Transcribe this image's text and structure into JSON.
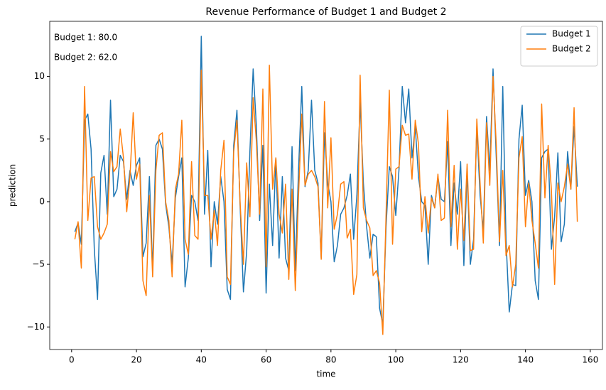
{
  "chart_data": {
    "type": "line",
    "title": "Revenue Performance of Budget 1 and Budget 2",
    "xlabel": "time",
    "ylabel": "prediction",
    "annotations": [
      "Budget 1: 80.0",
      "Budget 2: 62.0"
    ],
    "legend": "upper right",
    "xlim": [
      -6.75,
      163.75
    ],
    "ylim": [
      -11.8,
      14.4
    ],
    "xticks": [
      0,
      20,
      40,
      60,
      80,
      100,
      120,
      140,
      160
    ],
    "yticks": [
      {
        "value": -10,
        "label": "−10"
      },
      {
        "value": -5,
        "label": "−5"
      },
      0,
      5,
      10
    ],
    "x": [
      1,
      2,
      3,
      4,
      5,
      6,
      7,
      8,
      9,
      10,
      11,
      12,
      13,
      14,
      15,
      16,
      17,
      18,
      19,
      20,
      21,
      22,
      23,
      24,
      25,
      26,
      27,
      28,
      29,
      30,
      31,
      32,
      33,
      34,
      35,
      36,
      37,
      38,
      39,
      40,
      41,
      42,
      43,
      44,
      45,
      46,
      47,
      48,
      49,
      50,
      51,
      52,
      53,
      54,
      55,
      56,
      57,
      58,
      59,
      60,
      61,
      62,
      63,
      64,
      65,
      66,
      67,
      68,
      69,
      70,
      71,
      72,
      73,
      74,
      75,
      76,
      77,
      78,
      79,
      80,
      81,
      82,
      83,
      84,
      85,
      86,
      87,
      88,
      89,
      90,
      91,
      92,
      93,
      94,
      95,
      96,
      97,
      98,
      99,
      100,
      101,
      102,
      103,
      104,
      105,
      106,
      107,
      108,
      109,
      110,
      111,
      112,
      113,
      114,
      115,
      116,
      117,
      118,
      119,
      120,
      121,
      122,
      123,
      124,
      125,
      126,
      127,
      128,
      129,
      130,
      131,
      132,
      133,
      134,
      135,
      136,
      137,
      138,
      139,
      140,
      141,
      142,
      143,
      144,
      145,
      146,
      147,
      148,
      149,
      150,
      151,
      152,
      153,
      154,
      155,
      156
    ],
    "series": [
      {
        "name": "Budget 1",
        "color": "#1f77b4",
        "values": [
          -2.4,
          -1.7,
          -3.4,
          6.5,
          7.0,
          4.2,
          -3.8,
          -7.8,
          2.3,
          3.7,
          -1.0,
          8.1,
          0.4,
          1.0,
          3.7,
          3.2,
          0.2,
          2.5,
          1.3,
          2.9,
          3.5,
          -4.4,
          -3.3,
          2.0,
          -5.5,
          4.5,
          5.0,
          4.2,
          -0.2,
          -2.0,
          -5.0,
          0.3,
          2.0,
          3.5,
          -6.8,
          -4.5,
          0.5,
          0.0,
          -1.5,
          13.2,
          -1.0,
          4.1,
          -5.2,
          0.0,
          -1.8,
          2.0,
          0.0,
          -7.0,
          -7.8,
          4.5,
          7.3,
          -0.5,
          -7.2,
          -4.0,
          4.0,
          10.6,
          6.0,
          -1.5,
          4.5,
          -7.3,
          1.4,
          -3.5,
          3.5,
          -4.5,
          2.0,
          -4.5,
          -5.5,
          4.4,
          -5.5,
          2.5,
          9.2,
          1.2,
          2.5,
          8.1,
          2.5,
          1.5,
          -4.5,
          5.5,
          1.5,
          0.0,
          -4.8,
          -3.5,
          -1.0,
          -0.5,
          0.5,
          2.2,
          -3.0,
          0.5,
          8.0,
          1.5,
          -2.0,
          -4.5,
          -2.6,
          -2.8,
          -8.5,
          -9.8,
          -2.0,
          2.8,
          2.0,
          -1.1,
          2.6,
          9.2,
          6.3,
          9.0,
          3.5,
          6.0,
          2.0,
          0.0,
          -0.3,
          -5.0,
          0.5,
          -0.5,
          2.0,
          0.2,
          0.0,
          4.8,
          -3.5,
          1.5,
          -1.0,
          3.2,
          -5.1,
          2.5,
          -5.0,
          -3.0,
          6.0,
          0.5,
          -2.3,
          6.8,
          2.5,
          10.6,
          3.5,
          -3.5,
          9.2,
          -3.0,
          -8.8,
          -6.6,
          -6.7,
          5.0,
          7.7,
          0.5,
          1.7,
          0.0,
          -6.3,
          -7.8,
          3.5,
          4.0,
          4.2,
          -3.8,
          -1.2,
          3.9,
          -3.2,
          -1.8,
          4.0,
          1.0,
          6.0,
          1.2
        ]
      },
      {
        "name": "Budget 2",
        "color": "#ff7f0e",
        "values": [
          -3.0,
          -1.6,
          -5.3,
          9.2,
          -1.5,
          1.9,
          2.0,
          -2.0,
          -3.0,
          -2.5,
          -1.8,
          4.0,
          2.4,
          2.8,
          5.8,
          3.5,
          -0.8,
          2.0,
          7.1,
          1.8,
          3.0,
          -6.3,
          -7.5,
          0.5,
          -6.0,
          2.5,
          5.3,
          5.5,
          0.0,
          -1.5,
          -6.0,
          1.0,
          2.2,
          6.5,
          -3.0,
          -4.2,
          3.2,
          -2.7,
          -3.0,
          10.5,
          0.5,
          0.5,
          -3.0,
          -0.7,
          -3.5,
          2.5,
          4.9,
          -6.0,
          -6.6,
          4.0,
          6.5,
          -0.2,
          -5.0,
          3.1,
          -1.2,
          8.3,
          4.8,
          -1.0,
          9.0,
          -5.2,
          10.9,
          1.0,
          3.5,
          -1.0,
          -2.5,
          1.4,
          -6.2,
          1.0,
          -7.1,
          0.5,
          7.0,
          1.3,
          2.2,
          2.5,
          2.0,
          1.2,
          -4.6,
          8.0,
          -0.5,
          5.1,
          -2.2,
          -1.0,
          1.4,
          1.6,
          -2.9,
          -2.2,
          -7.4,
          -5.8,
          10.1,
          -0.5,
          -1.5,
          -2.1,
          -5.9,
          -5.5,
          -6.5,
          -10.6,
          -1.0,
          8.9,
          -3.4,
          2.6,
          2.8,
          6.1,
          5.3,
          5.4,
          1.8,
          6.5,
          4.6,
          -2.4,
          0.4,
          -2.5,
          0.3,
          -0.5,
          2.2,
          -1.5,
          -1.3,
          7.3,
          -2.0,
          2.9,
          -3.8,
          1.0,
          -3.1,
          3.0,
          -3.9,
          -3.8,
          6.6,
          1.5,
          -3.3,
          6.3,
          1.3,
          10.0,
          4.5,
          -3.2,
          2.5,
          -4.3,
          -3.5,
          -6.8,
          -5.0,
          3.5,
          5.2,
          -2.0,
          1.5,
          -1.5,
          -3.3,
          -5.3,
          7.8,
          0.3,
          4.5,
          1.0,
          -6.6,
          1.5,
          0.0,
          1.2,
          3.0,
          1.0,
          7.5,
          -1.6
        ]
      }
    ]
  }
}
